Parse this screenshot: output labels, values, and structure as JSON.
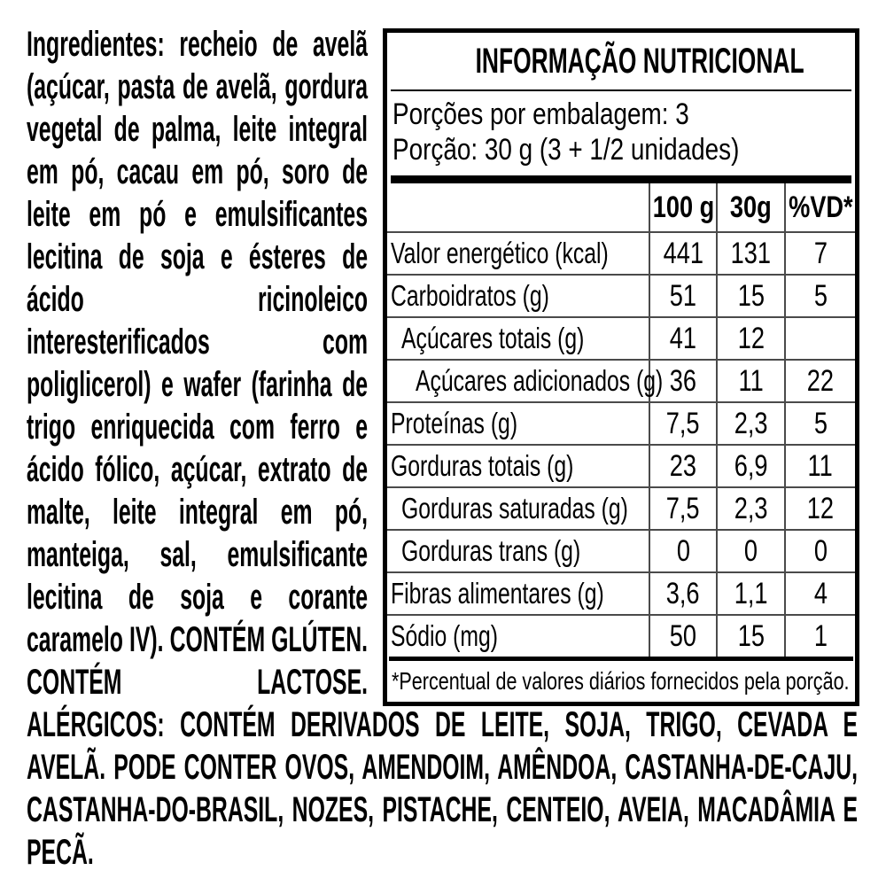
{
  "label": {
    "ingredients_text": "Ingredientes: recheio de avelã (açúcar, pasta de avelã, gordura vegetal de palma, leite integral em pó, cacau em pó, soro de leite em pó e emulsificantes lecitina de soja e ésteres de ácido ricinoleico interesterificados com poliglicerol) e wafer (farinha de trigo enriquecida com ferro e ácido fólico, açúcar, extrato de malte, leite integral em pó, manteiga, sal, emulsificante lecitina de soja e corante caramelo IV). CONTÉM GLÚTEN. CONTÉM LACTOSE. ALÉRGICOS: CONTÉM DERIVADOS DE LEITE, SOJA, TRIGO, CEVADA E AVELÃ. PODE CONTER OVOS, AMENDOIM, AMÊNDOA, CASTANHA-DE-CAJU, CASTANHA-DO-BRASIL, NOZES, PISTACHE, CENTEIO, AVEIA, MACADÂMIA E PECÃ."
  },
  "nutrition": {
    "title": "INFORMAÇÃO NUTRICIONAL",
    "servings_per_package": "Porções por embalagem: 3",
    "serving_size": "Porção: 30 g (3 + 1/2 unidades)",
    "columns": [
      "100 g",
      "30g",
      "%VD*"
    ],
    "rows": [
      {
        "label": "Valor energético (kcal)",
        "indent": 0,
        "values": [
          "441",
          "131",
          "7"
        ]
      },
      {
        "label": "Carboidratos (g)",
        "indent": 0,
        "values": [
          "51",
          "15",
          "5"
        ]
      },
      {
        "label": "Açúcares totais (g)",
        "indent": 1,
        "values": [
          "41",
          "12",
          ""
        ]
      },
      {
        "label": "Açúcares adicionados (g)",
        "indent": 2,
        "values": [
          "36",
          "11",
          "22"
        ]
      },
      {
        "label": "Proteínas (g)",
        "indent": 0,
        "values": [
          "7,5",
          "2,3",
          "5"
        ]
      },
      {
        "label": "Gorduras totais (g)",
        "indent": 0,
        "values": [
          "23",
          "6,9",
          "11"
        ]
      },
      {
        "label": "Gorduras saturadas (g)",
        "indent": 1,
        "values": [
          "7,5",
          "2,3",
          "12"
        ]
      },
      {
        "label": "Gorduras trans (g)",
        "indent": 1,
        "values": [
          "0",
          "0",
          "0"
        ]
      },
      {
        "label": "Fibras alimentares (g)",
        "indent": 0,
        "values": [
          "3,6",
          "1,1",
          "4"
        ]
      },
      {
        "label": "Sódio (mg)",
        "indent": 0,
        "values": [
          "50",
          "15",
          "1"
        ]
      }
    ],
    "footnote": "*Percentual de valores diários fornecidos pela porção."
  },
  "colors": {
    "text": "#000000",
    "background": "#ffffff",
    "border": "#000000",
    "grid_line": "#4a4a4a"
  }
}
